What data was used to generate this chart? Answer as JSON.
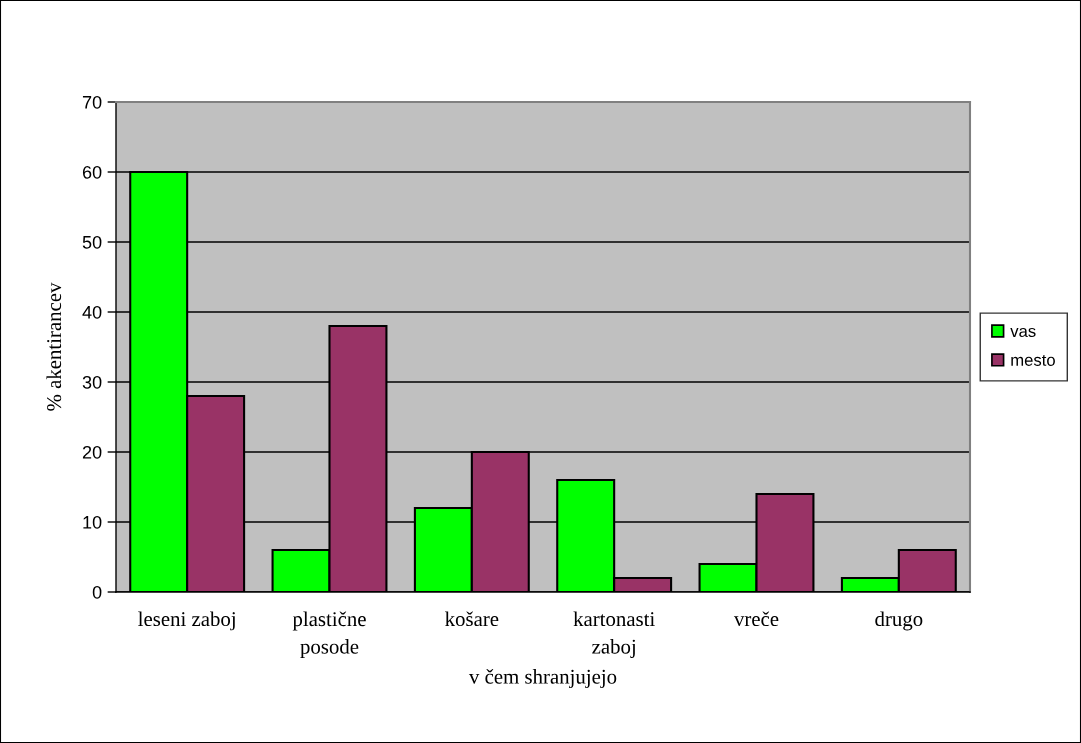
{
  "chart_data": {
    "type": "bar",
    "xlabel": "v čem shranjujejo",
    "ylabel": "% akentirancev",
    "categories": [
      "leseni zaboj",
      "plastične\nposode",
      "košare",
      "kartonasti\nzaboj",
      "vreče",
      "drugo"
    ],
    "series": [
      {
        "name": "vas",
        "color": "#00ff00",
        "values": [
          60,
          6,
          12,
          16,
          4,
          2
        ]
      },
      {
        "name": "mesto",
        "color": "#993366",
        "values": [
          28,
          38,
          20,
          2,
          14,
          6
        ]
      }
    ],
    "ylim": [
      0,
      70
    ],
    "yticks": [
      0,
      10,
      20,
      30,
      40,
      50,
      60,
      70
    ],
    "grid": "y",
    "legend": "right"
  }
}
